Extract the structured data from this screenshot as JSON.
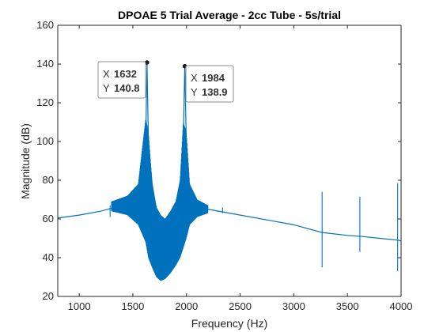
{
  "colors": {
    "series": "#0072BD",
    "axis": "#262626",
    "marker": "#1a1a1a",
    "tip_value": "#1a9bf0",
    "tip_border": "#8c8c8c"
  },
  "chart_data": {
    "type": "line",
    "title": "DPOAE 5 Trial Average - 2cc Tube - 5s/trial",
    "xlabel": "Frequency (Hz)",
    "ylabel": "Magnitude (dB)",
    "xlim": [
      800,
      4000
    ],
    "ylim": [
      20,
      160
    ],
    "xticks": [
      1000,
      1500,
      2000,
      2500,
      3000,
      3500,
      4000
    ],
    "yticks": [
      20,
      40,
      60,
      80,
      100,
      120,
      140,
      160
    ],
    "grid": false,
    "series": [
      {
        "baseline": [
          [
            800,
            60.5
          ],
          [
            1000,
            62.0
          ],
          [
            1200,
            64.0
          ],
          [
            1400,
            67.0
          ],
          [
            1550,
            72.0
          ],
          [
            1600,
            80.0
          ],
          [
            1620,
            100.0
          ],
          [
            1632,
            140.8
          ],
          [
            1645,
            100.0
          ],
          [
            1680,
            78.0
          ],
          [
            1720,
            65.0
          ],
          [
            1760,
            60.0
          ],
          [
            1800,
            59.0
          ],
          [
            1850,
            60.0
          ],
          [
            1900,
            66.0
          ],
          [
            1940,
            78.0
          ],
          [
            1970,
            100.0
          ],
          [
            1984,
            138.9
          ],
          [
            1998,
            100.0
          ],
          [
            2020,
            78.0
          ],
          [
            2080,
            68.0
          ],
          [
            2200,
            65.0
          ],
          [
            2400,
            63.0
          ],
          [
            2800,
            59.0
          ],
          [
            3000,
            57.0
          ],
          [
            3264,
            53.0
          ],
          [
            3500,
            51.5
          ],
          [
            3632,
            51.0
          ],
          [
            3800,
            50.0
          ],
          [
            3980,
            49.0
          ],
          [
            4000,
            48.5
          ]
        ],
        "envelope": [
          [
            1300,
            64,
            69
          ],
          [
            1450,
            62,
            72
          ],
          [
            1550,
            57,
            78
          ],
          [
            1620,
            48,
            112
          ],
          [
            1645,
            40,
            105
          ],
          [
            1680,
            35,
            78
          ],
          [
            1720,
            30,
            66
          ],
          [
            1760,
            28,
            62
          ],
          [
            1800,
            29,
            60
          ],
          [
            1850,
            32,
            64
          ],
          [
            1900,
            36,
            69
          ],
          [
            1940,
            40,
            80
          ],
          [
            1970,
            45,
            110
          ],
          [
            1998,
            50,
            105
          ],
          [
            2030,
            57,
            78
          ],
          [
            2100,
            61,
            70
          ],
          [
            2200,
            63,
            67
          ]
        ],
        "spurs": [
          [
            1288,
            61,
            67
          ],
          [
            2336,
            63,
            66
          ],
          [
            3264,
            35,
            74
          ],
          [
            3616,
            43,
            71.5
          ],
          [
            3968,
            33,
            78.5
          ]
        ]
      }
    ],
    "datatips": [
      {
        "x_label": "X",
        "x_value": "1632",
        "y_label": "Y",
        "y_value": "140.8",
        "x": 1632,
        "y": 140.8
      },
      {
        "x_label": "X",
        "x_value": "1984",
        "y_label": "Y",
        "y_value": "138.9",
        "x": 1984,
        "y": 138.9
      }
    ]
  }
}
